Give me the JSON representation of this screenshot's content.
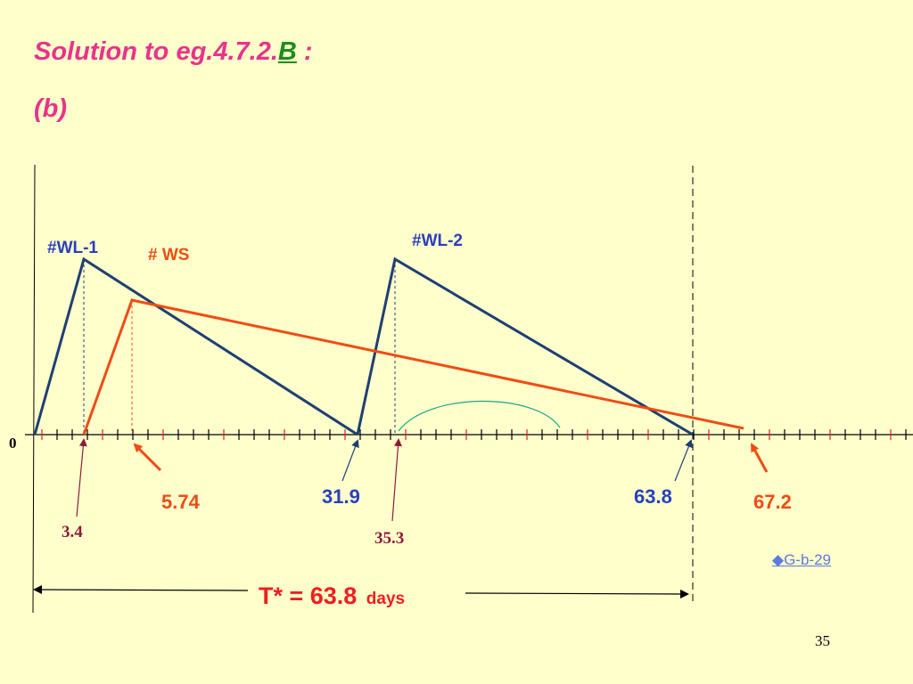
{
  "slide": {
    "title_prefix": "Solution to eg.4.7.2.",
    "title_emphasis": "B",
    "title_suffix": " :",
    "subtitle": "(b)",
    "link": "◆G-b-29",
    "page_number": "35"
  },
  "diagram": {
    "origin_label": "0",
    "series": [
      {
        "label": "#WL-1",
        "color": "#1F3F73"
      },
      {
        "label": "# WS",
        "color": "#F04C14"
      },
      {
        "label": "#WL-2",
        "color": "#1F3F73"
      }
    ],
    "markers": [
      {
        "value": "3.4",
        "color": "#8B1A3B"
      },
      {
        "value": "5.74",
        "color": "#F04C14"
      },
      {
        "value": "31.9",
        "color": "#2A3FBF"
      },
      {
        "value": "35.3",
        "color": "#8B1A3B"
      },
      {
        "value": "63.8",
        "color": "#2A3FBF"
      },
      {
        "value": "67.2",
        "color": "#F04C14"
      }
    ],
    "cycle_label": "T* = 63.8",
    "cycle_unit": "days"
  }
}
